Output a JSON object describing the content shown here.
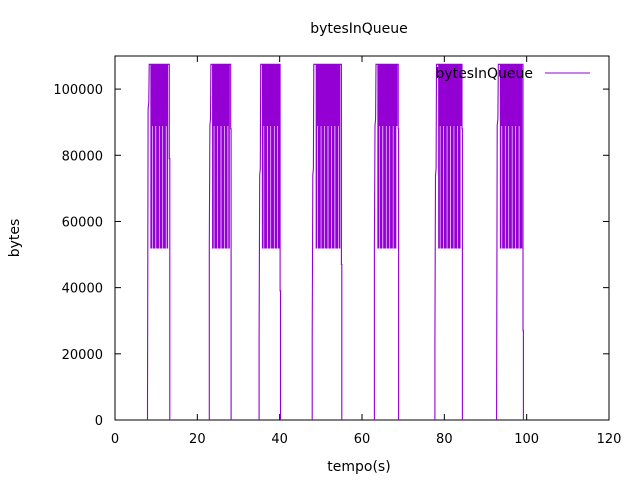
{
  "chart_data": {
    "type": "line",
    "title": "bytesInQueue",
    "xlabel": "tempo(s)",
    "ylabel": "bytes",
    "xlim": [
      0,
      120
    ],
    "ylim": [
      0,
      110000
    ],
    "x_ticks": [
      "0",
      "20",
      "40",
      "60",
      "80",
      "100",
      "120"
    ],
    "y_ticks": [
      "0",
      "20000",
      "40000",
      "60000",
      "80000",
      "100000"
    ],
    "x_tick_values": [
      0,
      20,
      40,
      60,
      80,
      100,
      120
    ],
    "y_tick_values": [
      0,
      20000,
      40000,
      60000,
      80000,
      100000
    ],
    "grid": false,
    "legend_position": "top-right",
    "series": [
      {
        "name": "bytesInQueue",
        "color": "#9400d3",
        "bursts": [
          {
            "start": 7.9,
            "first": 5000,
            "rise": 94000,
            "end": 13.2,
            "tail": 79000
          },
          {
            "start": 22.9,
            "first": 52000,
            "rise": 89000,
            "end": 28.1,
            "tail": 88000
          },
          {
            "start": 35.0,
            "first": 25000,
            "rise": 74000,
            "end": 40.1,
            "tail": 39000
          },
          {
            "start": 47.9,
            "first": 24000,
            "rise": 74000,
            "end": 55.0,
            "tail": 47000
          },
          {
            "start": 63.0,
            "first": 53000,
            "rise": 89000,
            "end": 68.8,
            "tail": 88000
          },
          {
            "start": 77.7,
            "first": 23000,
            "rise": 74000,
            "end": 84.3,
            "tail": 88000
          },
          {
            "start": 92.7,
            "first": 3000,
            "rise": 89000,
            "end": 99.1,
            "tail": 27000
          }
        ],
        "plateau_high": 107500,
        "plateau_mid": 89000,
        "plateau_low": 52000
      }
    ]
  }
}
